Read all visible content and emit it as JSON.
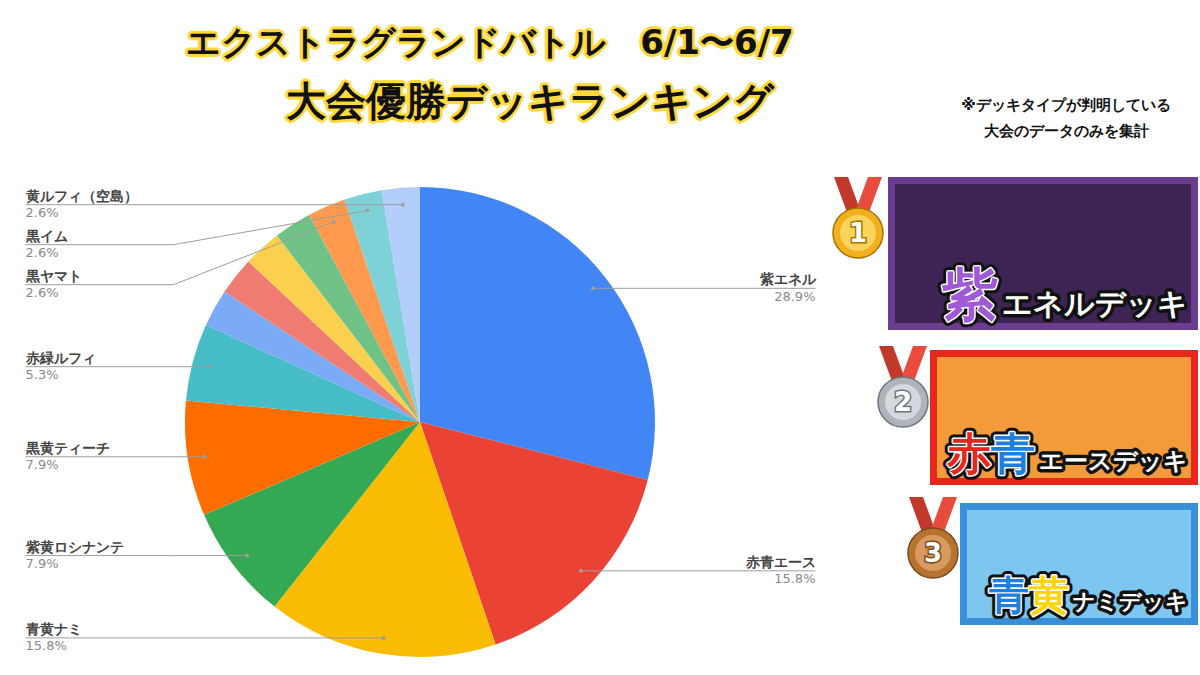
{
  "chart_data": {
    "type": "pie",
    "title": "エクストラグランドバトル　6/1〜6/7",
    "subtitle": "大会優勝デッキランキング",
    "annotations": [
      "※デッキタイプが判明している",
      "大会のデータのみを集計"
    ],
    "categories": [
      "紫エネル",
      "赤青エース",
      "青黄ナミ",
      "紫黄ロシナンテ",
      "黒黄ティーチ",
      "赤緑ルフィ",
      null,
      null,
      null,
      null,
      "黒ヤマト",
      "黒イム",
      "黄ルフィ（空島）"
    ],
    "values": [
      28.9,
      15.8,
      15.8,
      7.9,
      7.9,
      5.3,
      2.6,
      2.6,
      2.6,
      2.6,
      2.6,
      2.6,
      2.6
    ],
    "value_labels": [
      "28.9%",
      "15.8%",
      "15.8%",
      "7.9%",
      "7.9%",
      "5.3%",
      null,
      null,
      null,
      null,
      "2.6%",
      "2.6%",
      "2.6%"
    ],
    "colors": [
      "#4285f4",
      "#ea4335",
      "#fbbc04",
      "#34a853",
      "#ff6d01",
      "#46bdc6",
      "#7baaf7",
      "#f07b72",
      "#fcd04f",
      "#71c287",
      "#ff994d",
      "#7ed1d7",
      "#b3cefb"
    ],
    "data_labels": true
  },
  "ranking": [
    {
      "rank": 1,
      "prefix": [
        {
          "text": "紫",
          "color": "#a05ad8"
        }
      ],
      "name": "エネルデッキ",
      "color": "#6a3d8f"
    },
    {
      "rank": 2,
      "prefix": [
        {
          "text": "赤",
          "color": "#e8261c"
        },
        {
          "text": "青",
          "color": "#1e7fe0"
        }
      ],
      "name": "エースデッキ",
      "color": "#e8261c"
    },
    {
      "rank": 3,
      "prefix": [
        {
          "text": "青",
          "color": "#1e7fe0"
        },
        {
          "text": "黄",
          "color": "#ffd400"
        }
      ],
      "name": "ナミデッキ",
      "color": "#3a8fd9"
    }
  ]
}
